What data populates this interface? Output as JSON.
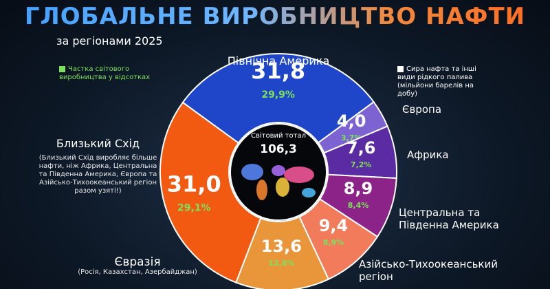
{
  "chart_data": {
    "type": "donut",
    "title": "ГЛОБАЛЬНЕ ВИРОБНИЦТВО НАФТИ",
    "subtitle": "за регіонами 2025",
    "legend": {
      "share": "Частка світового виробництва у відсотках",
      "volume": "Сира нафта та інші види рідкого палива (мільйони барелів на добу)"
    },
    "categories": [
      "Північна Америка",
      "Європа",
      "Африка",
      "Центральна та Південна Америка",
      "Азійсько-Тихоокеанський регіон",
      "Євразія",
      "Близький Схід"
    ],
    "notes": [
      null,
      null,
      null,
      null,
      null,
      "(Росія, Казахстан, Азербайджан)",
      "(Близький Схід виробляє більше нафти, ніж Африка, Центральна та Південна Америка, Європа та Азійсько-Тихоокеанський регіон разом узяті!)"
    ],
    "values": [
      31.8,
      4.0,
      7.6,
      8.9,
      9.4,
      13.6,
      31.0
    ],
    "value_labels": [
      "31,8",
      "4,0",
      "7,6",
      "8,9",
      "9,4",
      "13,6",
      "31,0"
    ],
    "shares": [
      29.9,
      3.7,
      7.2,
      8.4,
      8.9,
      12.8,
      29.1
    ],
    "share_labels": [
      "29,9%",
      "3,7%",
      "7,2%",
      "8,4%",
      "8,9%",
      "12,8%",
      "29,1%"
    ],
    "colors": [
      "#1f45c8",
      "#7d63d2",
      "#5b2ba3",
      "#8c2389",
      "#f27b5c",
      "#e9953a",
      "#f25a12"
    ],
    "share_color": "#7ee05a",
    "total_title": "Світовий тотал",
    "total": 106.3,
    "total_label": "106,3"
  }
}
